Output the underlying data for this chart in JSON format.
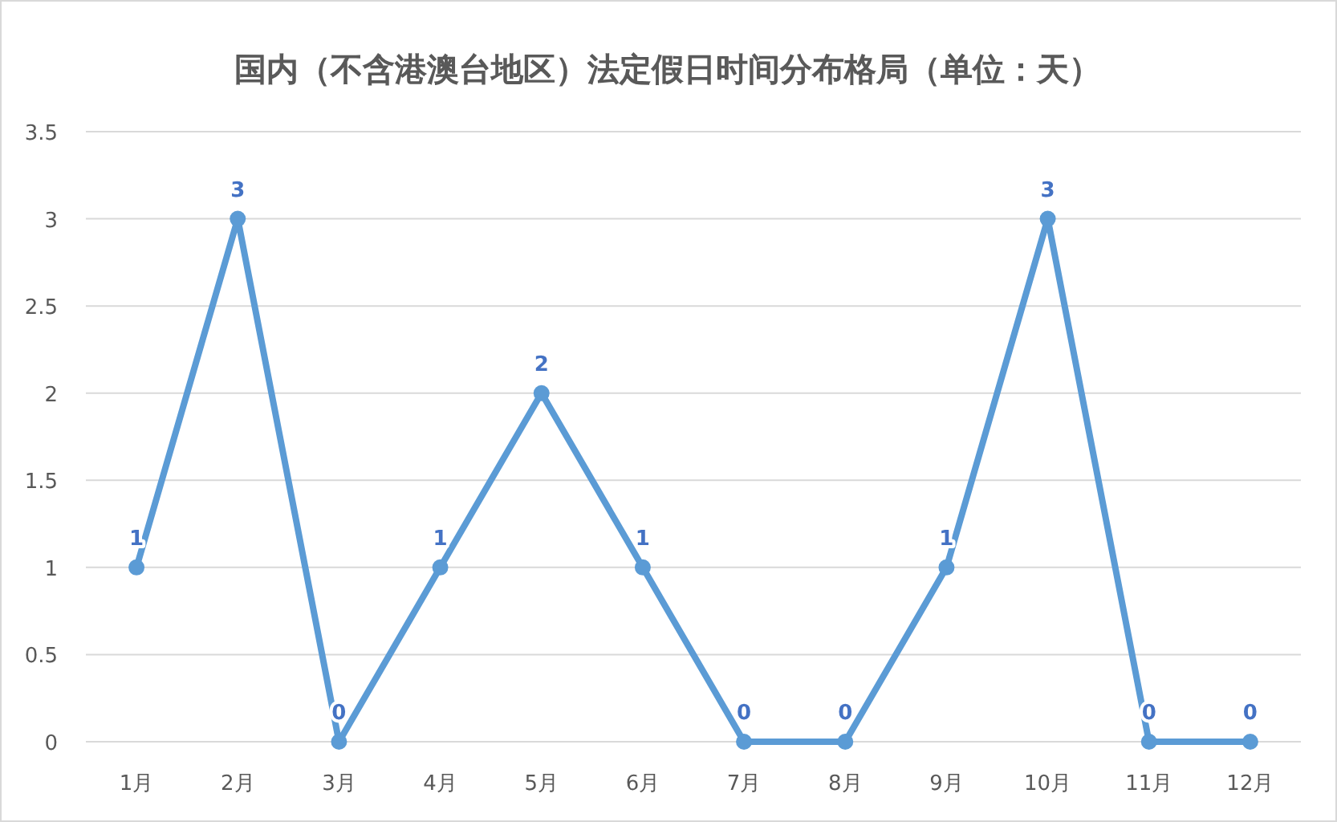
{
  "chart_data": {
    "type": "line",
    "title": "国内（不含港澳台地区）法定假日时间分布格局（单位：天）",
    "categories": [
      "1月",
      "2月",
      "3月",
      "4月",
      "5月",
      "6月",
      "7月",
      "8月",
      "9月",
      "10月",
      "11月",
      "12月"
    ],
    "values": [
      1,
      3,
      0,
      1,
      2,
      1,
      0,
      0,
      1,
      3,
      0,
      0
    ],
    "color": "#5b9bd5",
    "ylim": [
      0,
      3.5
    ],
    "yticks": [
      0,
      0.5,
      1,
      1.5,
      2,
      2.5,
      3,
      3.5
    ],
    "grid": "y",
    "marker": "circle",
    "line_style": "solid",
    "data_labels": true
  }
}
